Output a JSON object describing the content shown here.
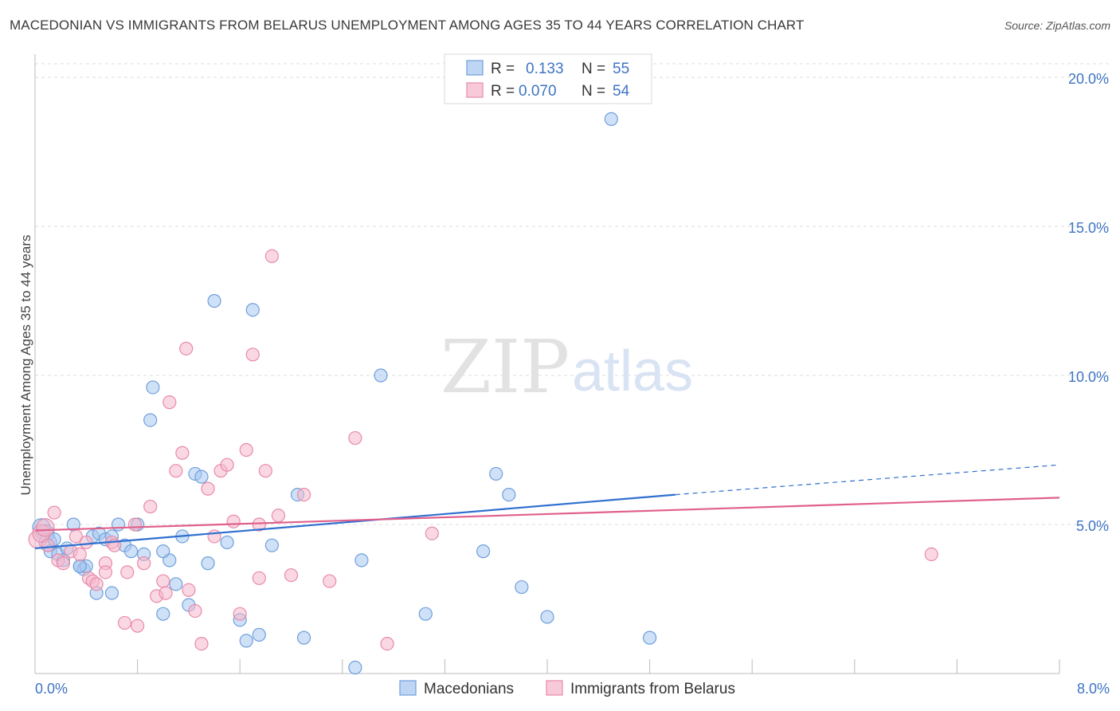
{
  "header": {
    "title": "MACEDONIAN VS IMMIGRANTS FROM BELARUS UNEMPLOYMENT AMONG AGES 35 TO 44 YEARS CORRELATION CHART",
    "source": "Source: ZipAtlas.com"
  },
  "watermark": {
    "zip": "ZIP",
    "atlas": "atlas"
  },
  "legend_top": {
    "rows": [
      {
        "r_label": "R =",
        "r_value": "0.133",
        "n_label": "N =",
        "n_value": "55",
        "color": "#a8c8f0",
        "stroke": "#6f9fdc"
      },
      {
        "r_label": "R =",
        "r_value": "0.070",
        "n_label": "N =",
        "n_value": "54",
        "color": "#f6b8cc",
        "stroke": "#e88aa8"
      }
    ]
  },
  "legend_bottom": {
    "items": [
      {
        "label": "Macedonians",
        "color": "#a8c8f0",
        "stroke": "#6f9fdc"
      },
      {
        "label": "Immigrants from Belarus",
        "color": "#f6b8cc",
        "stroke": "#e88aa8"
      }
    ]
  },
  "chart_data": {
    "type": "scatter",
    "title": "MACEDONIAN VS IMMIGRANTS FROM BELARUS UNEMPLOYMENT AMONG AGES 35 TO 44 YEARS CORRELATION CHART",
    "xlabel": "",
    "ylabel": "Unemployment Among Ages 35 to 44 years",
    "xlim": [
      0,
      8
    ],
    "ylim": [
      0,
      20
    ],
    "x_tick_labels": [
      "0.0%",
      "8.0%"
    ],
    "y_ticks": [
      5,
      10,
      15,
      20
    ],
    "y_tick_labels": [
      "5.0%",
      "10.0%",
      "15.0%",
      "20.0%"
    ],
    "grid": true,
    "legend_placement": "top-center",
    "series": [
      {
        "name": "Macedonians",
        "color": "#6f9fdc",
        "fill": "#a8c8f0",
        "trend": {
          "x0": 0,
          "y0": 4.2,
          "x1": 5.0,
          "y1": 6.0,
          "dash_to_x": 8.0,
          "dash_to_y": 7.0,
          "color": "#2f6fcf"
        },
        "points": [
          [
            0.05,
            4.9
          ],
          [
            0.08,
            4.7
          ],
          [
            0.1,
            4.4
          ],
          [
            0.12,
            4.1
          ],
          [
            0.15,
            4.5
          ],
          [
            0.18,
            4.0
          ],
          [
            0.22,
            3.8
          ],
          [
            0.25,
            4.2
          ],
          [
            0.3,
            5.0
          ],
          [
            0.35,
            3.6
          ],
          [
            0.38,
            3.5
          ],
          [
            0.4,
            3.6
          ],
          [
            0.45,
            4.6
          ],
          [
            0.48,
            2.7
          ],
          [
            0.5,
            4.7
          ],
          [
            0.55,
            4.5
          ],
          [
            0.6,
            4.6
          ],
          [
            0.65,
            5.0
          ],
          [
            0.7,
            4.3
          ],
          [
            0.75,
            4.1
          ],
          [
            0.8,
            5.0
          ],
          [
            0.85,
            4.0
          ],
          [
            0.9,
            8.5
          ],
          [
            0.92,
            9.6
          ],
          [
            1.0,
            2.0
          ],
          [
            1.05,
            3.8
          ],
          [
            1.1,
            3.0
          ],
          [
            1.15,
            4.6
          ],
          [
            1.2,
            2.3
          ],
          [
            1.25,
            6.7
          ],
          [
            1.3,
            6.6
          ],
          [
            1.35,
            3.7
          ],
          [
            1.4,
            12.5
          ],
          [
            1.5,
            4.4
          ],
          [
            1.6,
            1.8
          ],
          [
            1.65,
            1.1
          ],
          [
            1.7,
            12.2
          ],
          [
            1.75,
            1.3
          ],
          [
            1.85,
            4.3
          ],
          [
            2.05,
            6.0
          ],
          [
            2.1,
            1.2
          ],
          [
            2.5,
            0.2
          ],
          [
            2.55,
            3.8
          ],
          [
            2.7,
            10.0
          ],
          [
            3.05,
            2.0
          ],
          [
            3.5,
            4.1
          ],
          [
            3.6,
            6.7
          ],
          [
            3.7,
            6.0
          ],
          [
            3.8,
            2.9
          ],
          [
            4.0,
            1.9
          ],
          [
            4.5,
            18.6
          ],
          [
            4.8,
            1.2
          ],
          [
            0.6,
            2.7
          ],
          [
            1.0,
            4.1
          ],
          [
            0.35,
            3.6
          ]
        ]
      },
      {
        "name": "Immigrants from Belarus",
        "color": "#e88aa8",
        "fill": "#f6b8cc",
        "trend": {
          "x0": 0,
          "y0": 4.8,
          "x1": 8.0,
          "y1": 5.9,
          "color": "#e0608c"
        },
        "points": [
          [
            0.02,
            4.5
          ],
          [
            0.05,
            4.7
          ],
          [
            0.08,
            4.9
          ],
          [
            0.1,
            4.3
          ],
          [
            0.15,
            5.4
          ],
          [
            0.18,
            3.8
          ],
          [
            0.22,
            3.7
          ],
          [
            0.28,
            4.1
          ],
          [
            0.32,
            4.6
          ],
          [
            0.35,
            4.0
          ],
          [
            0.4,
            4.4
          ],
          [
            0.42,
            3.2
          ],
          [
            0.45,
            3.1
          ],
          [
            0.48,
            3.0
          ],
          [
            0.55,
            3.7
          ],
          [
            0.6,
            4.4
          ],
          [
            0.62,
            4.3
          ],
          [
            0.7,
            1.7
          ],
          [
            0.72,
            3.4
          ],
          [
            0.78,
            5.0
          ],
          [
            0.85,
            3.7
          ],
          [
            0.9,
            5.6
          ],
          [
            0.95,
            2.6
          ],
          [
            1.0,
            3.1
          ],
          [
            1.05,
            9.1
          ],
          [
            1.1,
            6.8
          ],
          [
            1.15,
            7.4
          ],
          [
            1.18,
            10.9
          ],
          [
            1.2,
            2.8
          ],
          [
            1.25,
            2.1
          ],
          [
            1.3,
            1.0
          ],
          [
            1.35,
            6.2
          ],
          [
            1.4,
            4.6
          ],
          [
            1.45,
            6.8
          ],
          [
            1.5,
            7.0
          ],
          [
            1.55,
            5.1
          ],
          [
            1.6,
            2.0
          ],
          [
            1.65,
            7.5
          ],
          [
            1.7,
            10.7
          ],
          [
            1.75,
            3.2
          ],
          [
            1.8,
            6.8
          ],
          [
            1.85,
            14.0
          ],
          [
            1.9,
            5.3
          ],
          [
            2.0,
            3.3
          ],
          [
            2.1,
            6.0
          ],
          [
            2.3,
            3.1
          ],
          [
            2.5,
            7.9
          ],
          [
            2.75,
            1.0
          ],
          [
            3.1,
            4.7
          ],
          [
            7.0,
            4.0
          ],
          [
            0.8,
            1.6
          ],
          [
            1.02,
            2.7
          ],
          [
            0.55,
            3.4
          ],
          [
            1.75,
            5.0
          ]
        ]
      }
    ]
  }
}
